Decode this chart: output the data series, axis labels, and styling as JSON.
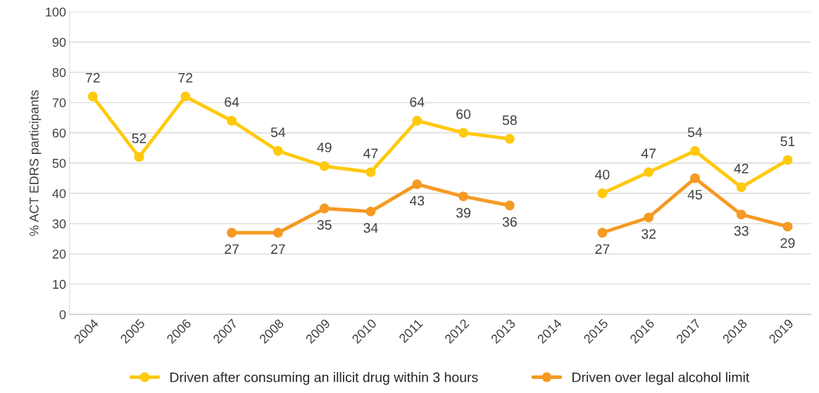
{
  "chart_data": {
    "type": "line",
    "ylabel": "% ACT EDRS participants",
    "categories": [
      "2004",
      "2005",
      "2006",
      "2007",
      "2008",
      "2009",
      "2010",
      "2011",
      "2012",
      "2013",
      "2014",
      "2015",
      "2016",
      "2017",
      "2018",
      "2019"
    ],
    "series": [
      {
        "name": "Driven after consuming an illicit drug within 3 hours",
        "color": "#ffc90e",
        "values": [
          72,
          52,
          72,
          64,
          54,
          49,
          47,
          64,
          60,
          58,
          null,
          40,
          47,
          54,
          42,
          51
        ]
      },
      {
        "name": "Driven over legal alcohol limit",
        "color": "#f59a23",
        "values": [
          null,
          null,
          null,
          27,
          27,
          35,
          34,
          43,
          39,
          36,
          null,
          27,
          32,
          45,
          33,
          29
        ]
      }
    ],
    "ylim": [
      0,
      100
    ],
    "yticks": [
      0,
      10,
      20,
      30,
      40,
      50,
      60,
      70,
      80,
      90,
      100
    ],
    "grid": "y",
    "legend": "bottom",
    "marker": "circle",
    "line_style": "solid",
    "data_labels": true
  }
}
